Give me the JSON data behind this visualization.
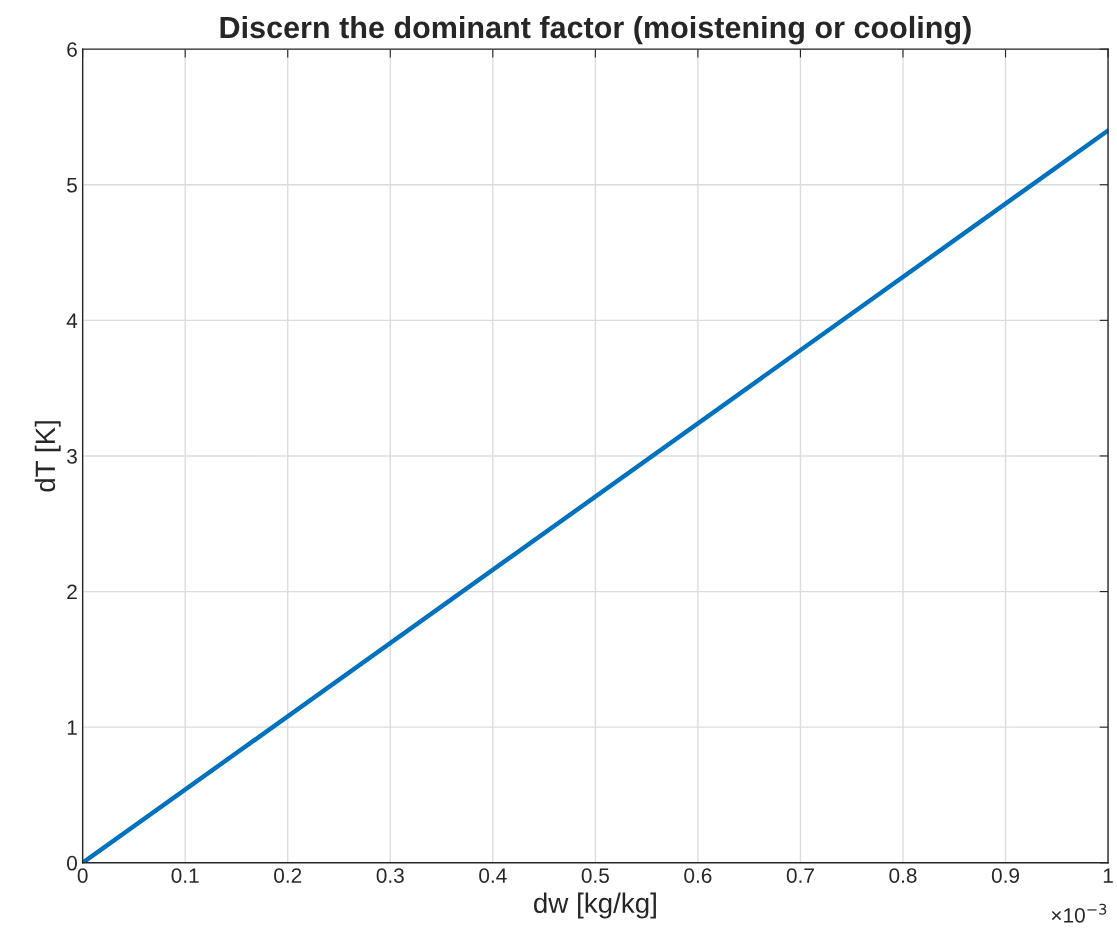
{
  "chart_data": {
    "type": "line",
    "title": "Discern the dominant factor (moistening or cooling)",
    "xlabel": "dw [kg/kg]",
    "ylabel": "dT [K]",
    "x": [
      0,
      1
    ],
    "series": [
      {
        "color": "#0072bd",
        "values": [
          0,
          5.4
        ]
      }
    ],
    "xlim": [
      0,
      1
    ],
    "ylim": [
      0,
      6
    ],
    "xticks": [
      0,
      0.1,
      0.2,
      0.3,
      0.4,
      0.5,
      0.6,
      0.7,
      0.8,
      0.9,
      1
    ],
    "yticks": [
      0,
      1,
      2,
      3,
      4,
      5,
      6
    ],
    "grid": true,
    "annotations": [
      "×10$^{−3}$"
    ]
  }
}
